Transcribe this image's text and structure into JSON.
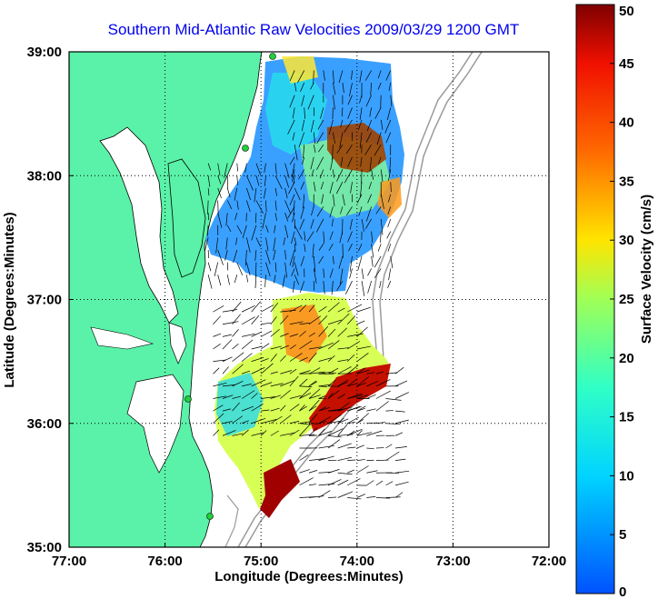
{
  "chart_data": {
    "type": "heatmap",
    "title": "Southern Mid-Atlantic Raw Velocities 2009/03/29 1200 GMT",
    "xlabel": "Longitude (Degrees:Minutes)",
    "ylabel": "Latitude (Degrees:Minutes)",
    "x_ticks": [
      "77:00",
      "76:00",
      "75:00",
      "74:00",
      "73:00",
      "72:00"
    ],
    "y_ticks": [
      "39:00",
      "38:00",
      "37:00",
      "36:00",
      "35:00"
    ],
    "xlim": [
      -77,
      -72
    ],
    "ylim": [
      35,
      39
    ],
    "grid": true,
    "colorbar": {
      "label": "Surface Velocity (cm/s)",
      "range": [
        0,
        50
      ],
      "ticks": [
        "0",
        "5",
        "10",
        "15",
        "20",
        "25",
        "30",
        "35",
        "40",
        "45",
        "50"
      ]
    },
    "colors": {
      "land": "#5af2a8",
      "coastline": "#000000",
      "bathymetry": "#9a9a9a",
      "stations": "#1fd13a"
    }
  }
}
